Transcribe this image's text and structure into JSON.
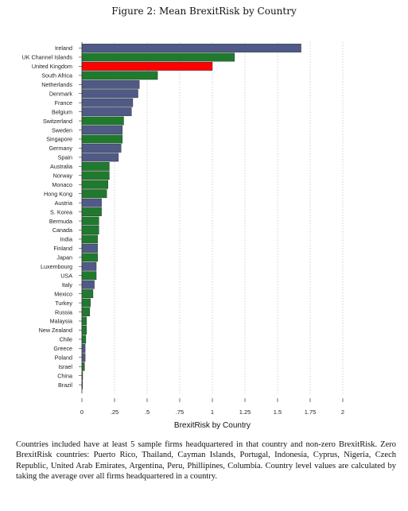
{
  "figure": {
    "title": "Figure 2: Mean BrexitRisk by Country",
    "caption": "Countries included have at least 5 sample firms headquartered in that country and non-zero BrexitRisk. Zero BrexitRisk countries: Puerto Rico, Thailand, Cayman Islands, Portugal, Indonesia, Cyprus, Nigeria, Czech Republic, United Arab Emirates, Argentina, Peru, Phillipines, Columbia. Country level values are calculated by taking the average over all firms headquartered in a country."
  },
  "colors": {
    "eu": "#4f5a86",
    "non_eu": "#1f7a2e",
    "uk": "#ff0000",
    "grid": "#bbbbbb",
    "axis": "#333333"
  },
  "chart_data": {
    "type": "bar",
    "orientation": "horizontal",
    "title": "",
    "xlabel": "BrexitRisk by Country",
    "ylabel": "",
    "xlim": [
      0,
      2
    ],
    "xticks": [
      0,
      0.25,
      0.5,
      0.75,
      1,
      1.25,
      1.5,
      1.75,
      2
    ],
    "xtick_labels": [
      "0",
      ".25",
      ".5",
      ".75",
      "1",
      "1.25",
      "1.5",
      "1.75",
      "2"
    ],
    "grid": true,
    "legend": "none",
    "categories": [
      "Ireland",
      "UK Channel Islands",
      "United Kingdom",
      "South Africa",
      "Netherlands",
      "Denmark",
      "France",
      "Belgium",
      "Switzerland",
      "Sweden",
      "Singapore",
      "Germany",
      "Spain",
      "Australia",
      "Norway",
      "Monaco",
      "Hong Kong",
      "Austria",
      "S. Korea",
      "Bermuda",
      "Canada",
      "India",
      "Finland",
      "Japan",
      "Luxembourg",
      "USA",
      "Italy",
      "Mexico",
      "Turkey",
      "Russia",
      "Malaysia",
      "New Zealand",
      "Chile",
      "Greece",
      "Poland",
      "Israel",
      "China",
      "Brazil"
    ],
    "values": [
      1.68,
      1.17,
      1.0,
      0.58,
      0.44,
      0.43,
      0.39,
      0.38,
      0.32,
      0.31,
      0.31,
      0.3,
      0.28,
      0.21,
      0.21,
      0.2,
      0.19,
      0.15,
      0.15,
      0.13,
      0.13,
      0.12,
      0.12,
      0.12,
      0.11,
      0.11,
      0.095,
      0.085,
      0.065,
      0.06,
      0.035,
      0.035,
      0.03,
      0.025,
      0.025,
      0.02,
      0.006,
      0.004
    ],
    "groups": [
      "eu",
      "non_eu",
      "uk",
      "non_eu",
      "eu",
      "eu",
      "eu",
      "eu",
      "non_eu",
      "eu",
      "non_eu",
      "eu",
      "eu",
      "non_eu",
      "non_eu",
      "non_eu",
      "non_eu",
      "eu",
      "non_eu",
      "non_eu",
      "non_eu",
      "non_eu",
      "eu",
      "non_eu",
      "eu",
      "non_eu",
      "eu",
      "non_eu",
      "non_eu",
      "non_eu",
      "non_eu",
      "non_eu",
      "non_eu",
      "eu",
      "eu",
      "non_eu",
      "non_eu",
      "non_eu"
    ]
  }
}
